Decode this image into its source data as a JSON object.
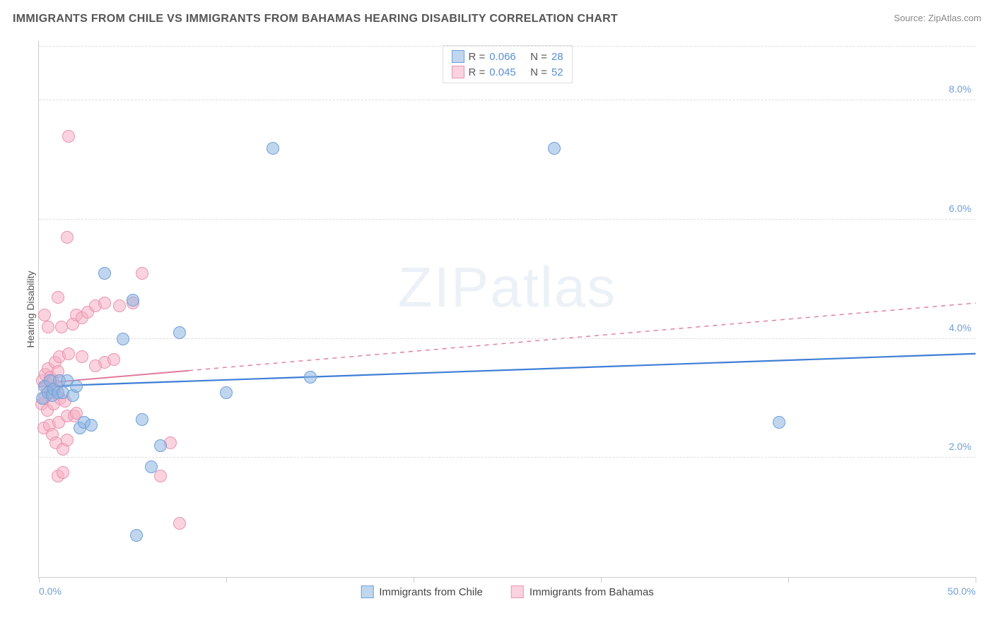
{
  "chart": {
    "type": "scatter",
    "title": "IMMIGRANTS FROM CHILE VS IMMIGRANTS FROM BAHAMAS HEARING DISABILITY CORRELATION CHART",
    "source_label": "Source:",
    "source_name": "ZipAtlas.com",
    "ylabel": "Hearing Disability",
    "watermark": "ZIPatlas",
    "background_color": "#ffffff",
    "grid_color": "#dddddd",
    "axis_color": "#cccccc",
    "text_color": "#555555",
    "tick_label_color": "#6f9fd8",
    "title_fontsize": 16,
    "label_fontsize": 14,
    "x_axis": {
      "min": 0.0,
      "max": 50.0,
      "ticks_major": [
        0.0,
        50.0
      ],
      "ticks_minor": [
        10.0,
        20.0,
        30.0,
        40.0
      ],
      "tick_labels": {
        "0.0": "0.0%",
        "50.0": "50.0%"
      }
    },
    "y_axis": {
      "min": 0.0,
      "max": 9.0,
      "gridlines": [
        2.0,
        4.0,
        6.0,
        8.0
      ],
      "tick_labels": {
        "2.0": "2.0%",
        "4.0": "4.0%",
        "6.0": "6.0%",
        "8.0": "8.0%"
      }
    },
    "series": [
      {
        "id": "chile",
        "label_bottom": "Immigrants from Chile",
        "R_label": "R =",
        "R_value": "0.066",
        "N_label": "N =",
        "N_value": "28",
        "marker_fill": "rgba(140,180,225,0.55)",
        "marker_stroke": "#6f9fd8",
        "marker_radius": 9,
        "swatch_fill": "rgba(140,180,225,0.55)",
        "swatch_stroke": "#6f9fd8",
        "trend_color": "#3e7fd6",
        "trend_width": 2.2,
        "trend_dash": "none",
        "trend_start": {
          "x": 0.0,
          "y": 3.2
        },
        "trend_end": {
          "x": 50.0,
          "y": 3.75
        },
        "points": [
          {
            "x": 0.2,
            "y": 3.0
          },
          {
            "x": 0.3,
            "y": 3.2
          },
          {
            "x": 0.5,
            "y": 3.1
          },
          {
            "x": 0.6,
            "y": 3.3
          },
          {
            "x": 0.7,
            "y": 3.05
          },
          {
            "x": 0.8,
            "y": 3.15
          },
          {
            "x": 1.0,
            "y": 3.1
          },
          {
            "x": 1.1,
            "y": 3.3
          },
          {
            "x": 1.3,
            "y": 3.1
          },
          {
            "x": 1.5,
            "y": 3.3
          },
          {
            "x": 1.8,
            "y": 3.05
          },
          {
            "x": 2.0,
            "y": 3.2
          },
          {
            "x": 2.2,
            "y": 2.5
          },
          {
            "x": 2.4,
            "y": 2.6
          },
          {
            "x": 2.8,
            "y": 2.55
          },
          {
            "x": 3.5,
            "y": 5.1
          },
          {
            "x": 4.5,
            "y": 4.0
          },
          {
            "x": 5.0,
            "y": 4.65
          },
          {
            "x": 5.2,
            "y": 0.7
          },
          {
            "x": 5.5,
            "y": 2.65
          },
          {
            "x": 6.0,
            "y": 1.85
          },
          {
            "x": 6.5,
            "y": 2.2
          },
          {
            "x": 7.5,
            "y": 4.1
          },
          {
            "x": 10.0,
            "y": 3.1
          },
          {
            "x": 12.5,
            "y": 7.2
          },
          {
            "x": 14.5,
            "y": 3.35
          },
          {
            "x": 27.5,
            "y": 7.2
          },
          {
            "x": 39.5,
            "y": 2.6
          }
        ]
      },
      {
        "id": "bahamas",
        "label_bottom": "Immigrants from Bahamas",
        "R_label": "R =",
        "R_value": "0.045",
        "N_label": "N =",
        "N_value": "52",
        "marker_fill": "rgba(245,175,195,0.55)",
        "marker_stroke": "#e895b0",
        "marker_radius": 9,
        "swatch_fill": "rgba(245,175,195,0.55)",
        "swatch_stroke": "#e895b0",
        "trend_color": "#e07a9a",
        "trend_width": 2,
        "trend_dash": "dashed",
        "trend_solid_until_x": 8.0,
        "trend_start": {
          "x": 0.0,
          "y": 3.25
        },
        "trend_end": {
          "x": 50.0,
          "y": 4.6
        },
        "points": [
          {
            "x": 0.15,
            "y": 2.9
          },
          {
            "x": 0.2,
            "y": 3.3
          },
          {
            "x": 0.25,
            "y": 2.5
          },
          {
            "x": 0.3,
            "y": 3.0
          },
          {
            "x": 0.35,
            "y": 3.4
          },
          {
            "x": 0.4,
            "y": 3.2
          },
          {
            "x": 0.45,
            "y": 2.8
          },
          {
            "x": 0.5,
            "y": 3.5
          },
          {
            "x": 0.55,
            "y": 2.55
          },
          {
            "x": 0.6,
            "y": 3.35
          },
          {
            "x": 0.65,
            "y": 3.1
          },
          {
            "x": 0.7,
            "y": 2.4
          },
          {
            "x": 0.75,
            "y": 3.3
          },
          {
            "x": 0.8,
            "y": 2.9
          },
          {
            "x": 0.85,
            "y": 3.6
          },
          {
            "x": 0.9,
            "y": 2.25
          },
          {
            "x": 0.95,
            "y": 3.2
          },
          {
            "x": 1.0,
            "y": 3.45
          },
          {
            "x": 1.05,
            "y": 2.6
          },
          {
            "x": 1.1,
            "y": 3.7
          },
          {
            "x": 1.15,
            "y": 3.0
          },
          {
            "x": 1.2,
            "y": 4.2
          },
          {
            "x": 1.3,
            "y": 2.15
          },
          {
            "x": 1.4,
            "y": 2.95
          },
          {
            "x": 1.5,
            "y": 2.3
          },
          {
            "x": 1.6,
            "y": 3.75
          },
          {
            "x": 1.8,
            "y": 4.25
          },
          {
            "x": 1.0,
            "y": 4.7
          },
          {
            "x": 2.0,
            "y": 4.4
          },
          {
            "x": 2.3,
            "y": 4.35
          },
          {
            "x": 1.5,
            "y": 5.7
          },
          {
            "x": 1.6,
            "y": 7.4
          },
          {
            "x": 2.6,
            "y": 4.45
          },
          {
            "x": 3.0,
            "y": 4.55
          },
          {
            "x": 1.0,
            "y": 1.7
          },
          {
            "x": 1.3,
            "y": 1.75
          },
          {
            "x": 1.5,
            "y": 2.7
          },
          {
            "x": 1.9,
            "y": 2.7
          },
          {
            "x": 2.0,
            "y": 2.75
          },
          {
            "x": 3.5,
            "y": 3.6
          },
          {
            "x": 4.0,
            "y": 3.65
          },
          {
            "x": 4.3,
            "y": 4.55
          },
          {
            "x": 5.5,
            "y": 5.1
          },
          {
            "x": 5.0,
            "y": 4.6
          },
          {
            "x": 6.5,
            "y": 1.7
          },
          {
            "x": 7.0,
            "y": 2.25
          },
          {
            "x": 7.5,
            "y": 0.9
          },
          {
            "x": 2.3,
            "y": 3.7
          },
          {
            "x": 3.0,
            "y": 3.55
          },
          {
            "x": 3.5,
            "y": 4.6
          },
          {
            "x": 0.5,
            "y": 4.2
          },
          {
            "x": 0.3,
            "y": 4.4
          }
        ]
      }
    ]
  }
}
